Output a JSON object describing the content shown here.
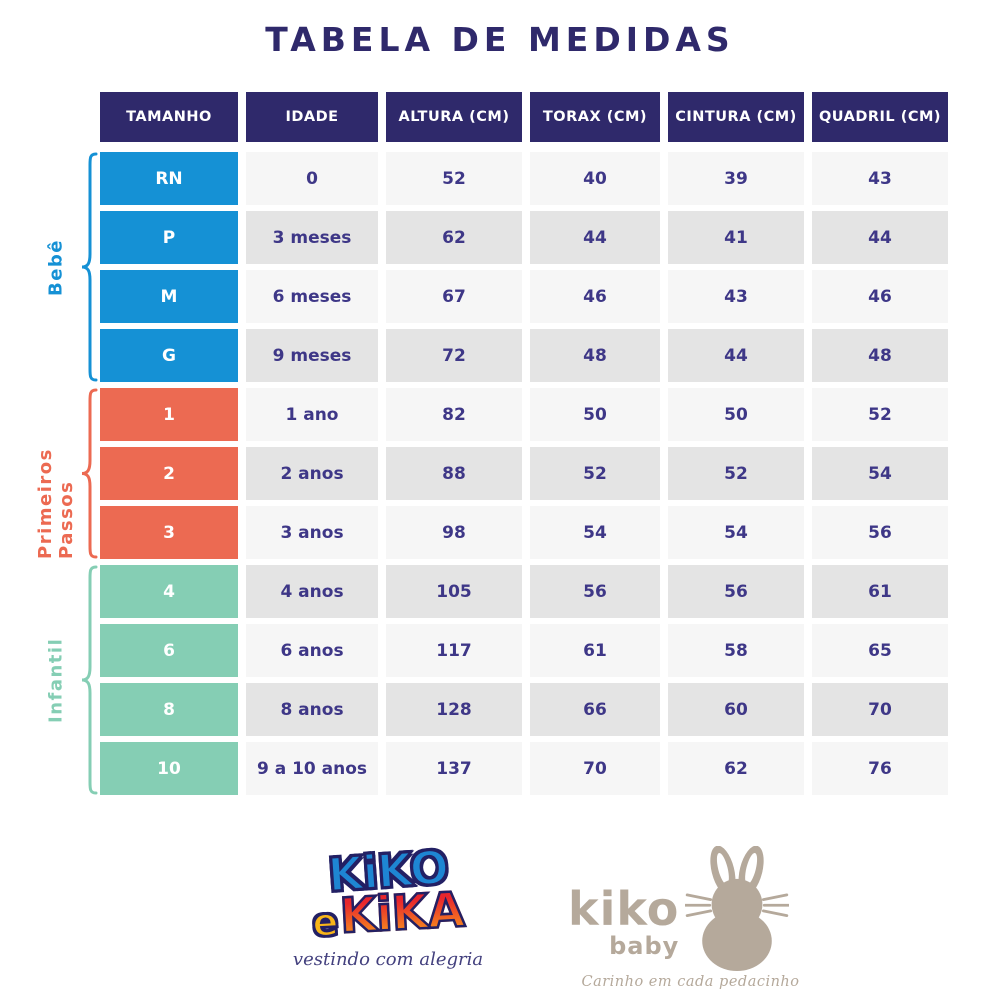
{
  "chart_data": {
    "type": "table",
    "title": "TABELA DE MEDIDAS",
    "columns": [
      "TAMANHO",
      "IDADE",
      "ALTURA (CM)",
      "TORAX (CM)",
      "CINTURA (CM)",
      "QUADRIL (CM)"
    ],
    "groups": [
      {
        "label": "Bebê",
        "color": "#1591d5",
        "rows": [
          [
            "RN",
            "0",
            "52",
            "40",
            "39",
            "43"
          ],
          [
            "P",
            "3 meses",
            "62",
            "44",
            "41",
            "44"
          ],
          [
            "M",
            "6 meses",
            "67",
            "46",
            "43",
            "46"
          ],
          [
            "G",
            "9 meses",
            "72",
            "48",
            "44",
            "48"
          ]
        ]
      },
      {
        "label": "Primeiros Passos",
        "color": "#ec6a52",
        "rows": [
          [
            "1",
            "1 ano",
            "82",
            "50",
            "50",
            "52"
          ],
          [
            "2",
            "2 anos",
            "88",
            "52",
            "52",
            "54"
          ],
          [
            "3",
            "3 anos",
            "98",
            "54",
            "54",
            "56"
          ]
        ]
      },
      {
        "label": "Infantil",
        "color": "#85ceb4",
        "rows": [
          [
            "4",
            "4 anos",
            "105",
            "56",
            "56",
            "61"
          ],
          [
            "6",
            "6 anos",
            "117",
            "61",
            "58",
            "65"
          ],
          [
            "8",
            "8 anos",
            "128",
            "66",
            "60",
            "70"
          ],
          [
            "10",
            "9 a 10 anos",
            "137",
            "70",
            "62",
            "76"
          ]
        ]
      }
    ]
  },
  "logos": {
    "kikoekika": {
      "line1": "KiKO",
      "e": "e",
      "line2": "KiKA",
      "tagline": "vestindo com alegria"
    },
    "kikobaby": {
      "name": "kiko",
      "sub": "baby",
      "tagline": "Carinho em cada pedacinho"
    }
  },
  "colors": {
    "header_bg": "#2f296b",
    "value_text": "#3e3787",
    "row_light": "#f6f6f6",
    "row_dark": "#e4e4e4",
    "bebe": "#1591d5",
    "primeiros_passos": "#ec6a52",
    "infantil": "#85ceb4",
    "baby_logo": "#b5a99b"
  }
}
